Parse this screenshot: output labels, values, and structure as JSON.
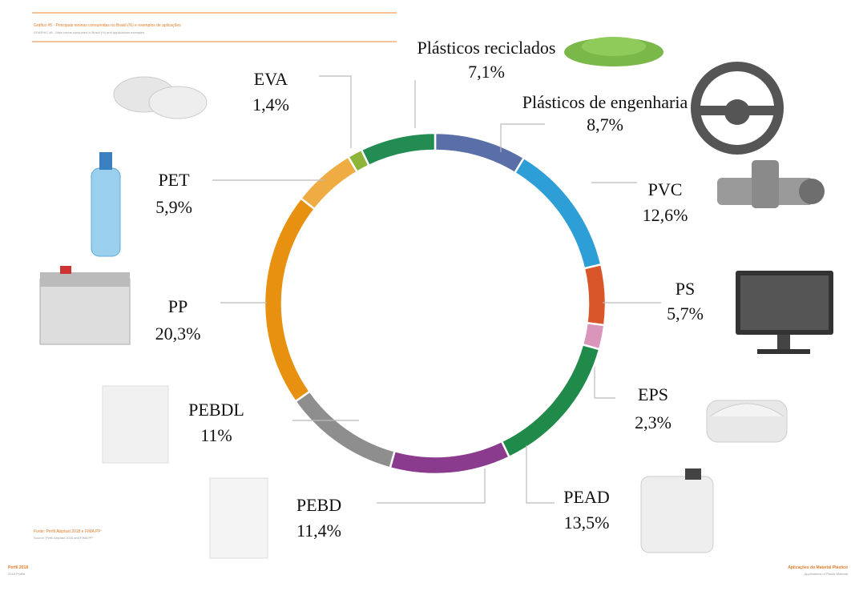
{
  "chart_data": {
    "type": "donut",
    "title": "Gráfico #5 - Principais resinas consumidas no Brasil (%) e exemplos de aplicações",
    "subtitle": "GRAPHIC #5 - Main resins consumed in Brazil (%) and applications examples",
    "source": "Fonte: Perfil Abiplast 2018 e FIMA PP",
    "source_en": "Source: Perfil Abiplast 2018 and FIMA PP",
    "footer_left": "Perfil 2018",
    "footer_left_en": "2018 Profile",
    "footer_right": "Aplicações do Material Plástico",
    "footer_right_en": "Applications of Plastic Material",
    "categories": [
      "Plásticos de engenharia",
      "PVC",
      "PS",
      "EPS",
      "PEAD",
      "PEBD",
      "PEBDL",
      "PP",
      "PET",
      "EVA",
      "Plásticos reciclados"
    ],
    "values": [
      8.7,
      12.6,
      5.7,
      2.3,
      13.5,
      11.4,
      11,
      20.3,
      5.9,
      1.4,
      7.1
    ],
    "value_labels": [
      "8,7%",
      "12,6%",
      "5,7%",
      "2,3%",
      "13,5%",
      "11,4%",
      "11%",
      "20,3%",
      "5,9%",
      "1,4%",
      "7,1%"
    ],
    "colors": [
      "#5a6fa8",
      "#2d9fd6",
      "#d9552a",
      "#d996ba",
      "#1f8a4a",
      "#8b3b8e",
      "#8e8e8e",
      "#e8900f",
      "#efac42",
      "#8db53a",
      "#238c52"
    ]
  }
}
